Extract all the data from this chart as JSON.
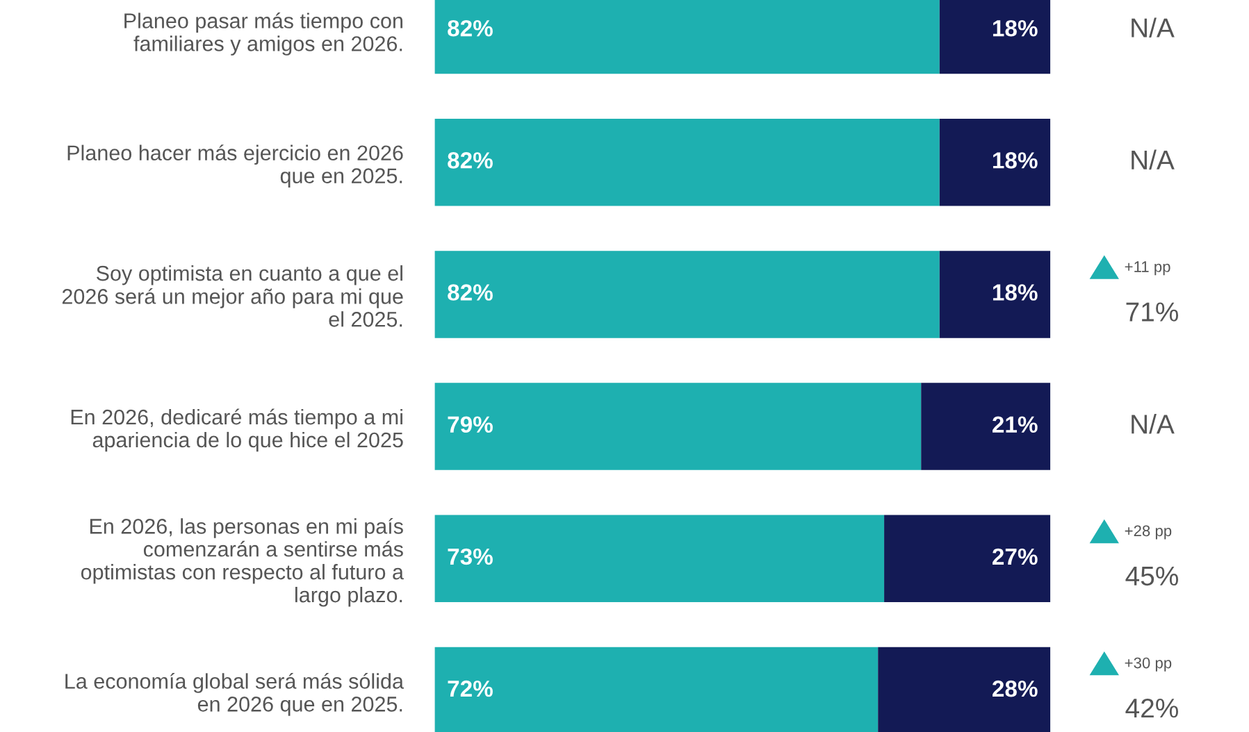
{
  "chart_data": {
    "type": "bar",
    "orientation": "horizontal",
    "stacked": true,
    "tick_labels": "y",
    "legend": false,
    "grid": false,
    "categories": [
      "Planeo pasar más tiempo con\nfamiliares y amigos en 2026.",
      "Planeo hacer más ejercicio en 2026\nque en 2025.",
      "Soy optimista en cuanto a que el\n2026 será un mejor año para mi que\nel 2025.",
      "En 2026, dedicaré más tiempo a mi\napariencia de lo que hice el 2025",
      "En 2026, las personas en mi país\ncomenzarán a sentirse más\noptimistas con respecto al futuro a\nlargo plazo.",
      "La economía global será más sólida\nen 2026 que en 2025."
    ],
    "series": [
      {
        "color": "#1eb0b0",
        "values": [
          82,
          82,
          82,
          79,
          73,
          72
        ],
        "value_labels": [
          "82%",
          "82%",
          "82%",
          "79%",
          "73%",
          "72%"
        ]
      },
      {
        "color": "#131a55",
        "values": [
          18,
          18,
          18,
          21,
          27,
          28
        ],
        "value_labels": [
          "18%",
          "18%",
          "18%",
          "21%",
          "27%",
          "28%"
        ]
      }
    ],
    "annotations": [
      "N/A",
      "N/A",
      "+11 pp",
      "71%",
      "N/A",
      "+28 pp",
      "45%",
      "+30 pp",
      "42%"
    ]
  }
}
